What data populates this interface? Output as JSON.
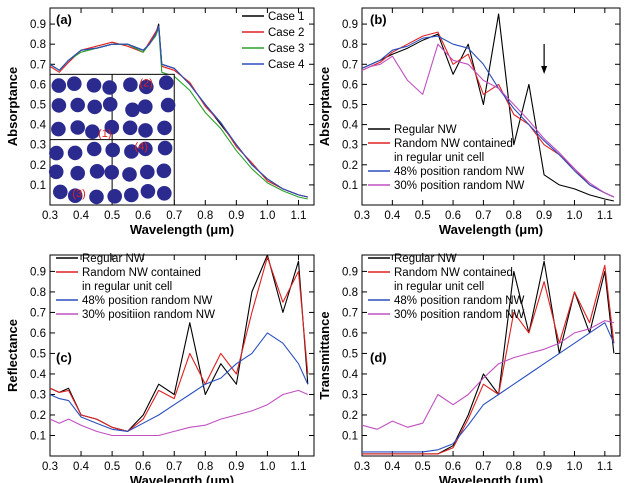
{
  "chart_data": [
    {
      "type": "line",
      "panel_label": "(a)",
      "xlabel": "Wavelength (μm)",
      "ylabel": "Absorptance",
      "xlim": [
        0.3,
        1.15
      ],
      "ylim": [
        0.0,
        0.98
      ],
      "x_ticks": [
        "0.3",
        "0.4",
        "0.5",
        "0.6",
        "0.7",
        "0.8",
        "0.9",
        "1.0",
        "1.1"
      ],
      "y_ticks": [
        "0.1",
        "0.2",
        "0.3",
        "0.4",
        "0.5",
        "0.6",
        "0.7",
        "0.8",
        "0.9"
      ],
      "legend_position": "top-right",
      "inset": {
        "labels": [
          "(1)",
          "(2)",
          "(3)",
          "(4)"
        ],
        "color": "#2b2b8f"
      },
      "series": [
        {
          "name": "Case 1",
          "color": "#000000",
          "x": [
            0.3,
            0.33,
            0.36,
            0.4,
            0.45,
            0.5,
            0.55,
            0.6,
            0.62,
            0.64,
            0.65,
            0.66,
            0.7,
            0.75,
            0.8,
            0.85,
            0.9,
            0.95,
            1.0,
            1.05,
            1.1,
            1.13
          ],
          "y": [
            0.7,
            0.67,
            0.72,
            0.77,
            0.78,
            0.8,
            0.8,
            0.77,
            0.8,
            0.85,
            0.9,
            0.7,
            0.68,
            0.6,
            0.5,
            0.4,
            0.3,
            0.2,
            0.13,
            0.08,
            0.05,
            0.04
          ]
        },
        {
          "name": "Case 2",
          "color": "#e02020",
          "x": [
            0.3,
            0.33,
            0.36,
            0.4,
            0.45,
            0.5,
            0.55,
            0.6,
            0.62,
            0.64,
            0.65,
            0.66,
            0.7,
            0.75,
            0.8,
            0.85,
            0.9,
            0.95,
            1.0,
            1.05,
            1.1,
            1.13
          ],
          "y": [
            0.69,
            0.66,
            0.71,
            0.77,
            0.79,
            0.81,
            0.79,
            0.76,
            0.81,
            0.86,
            0.89,
            0.69,
            0.67,
            0.61,
            0.49,
            0.41,
            0.29,
            0.21,
            0.12,
            0.08,
            0.05,
            0.04
          ]
        },
        {
          "name": "Case 3",
          "color": "#2aa02a",
          "x": [
            0.3,
            0.33,
            0.36,
            0.4,
            0.45,
            0.5,
            0.55,
            0.6,
            0.62,
            0.64,
            0.65,
            0.66,
            0.7,
            0.75,
            0.8,
            0.85,
            0.9,
            0.95,
            1.0,
            1.05,
            1.1,
            1.13
          ],
          "y": [
            0.7,
            0.67,
            0.72,
            0.76,
            0.78,
            0.8,
            0.8,
            0.76,
            0.8,
            0.84,
            0.88,
            0.66,
            0.64,
            0.57,
            0.46,
            0.38,
            0.27,
            0.18,
            0.11,
            0.07,
            0.04,
            0.03
          ]
        },
        {
          "name": "Case 4",
          "color": "#2a4fbf",
          "x": [
            0.3,
            0.33,
            0.36,
            0.4,
            0.45,
            0.5,
            0.55,
            0.6,
            0.62,
            0.64,
            0.65,
            0.66,
            0.7,
            0.75,
            0.8,
            0.85,
            0.9,
            0.95,
            1.0,
            1.05,
            1.1,
            1.13
          ],
          "y": [
            0.7,
            0.67,
            0.72,
            0.77,
            0.78,
            0.8,
            0.8,
            0.77,
            0.8,
            0.85,
            0.89,
            0.7,
            0.68,
            0.6,
            0.5,
            0.41,
            0.3,
            0.2,
            0.13,
            0.08,
            0.05,
            0.04
          ]
        }
      ]
    },
    {
      "type": "line",
      "panel_label": "(b)",
      "xlabel": "Wavelength (μm)",
      "ylabel": "Absorptance",
      "xlim": [
        0.3,
        1.15
      ],
      "ylim": [
        0.0,
        0.98
      ],
      "x_ticks": [
        "0.3",
        "0.4",
        "0.5",
        "0.6",
        "0.7",
        "0.8",
        "0.9",
        "1.0",
        "1.1"
      ],
      "y_ticks": [
        "0.1",
        "0.2",
        "0.3",
        "0.4",
        "0.5",
        "0.6",
        "0.7",
        "0.8",
        "0.9"
      ],
      "legend_position": "bottom-left",
      "annotation": "arrow at 0.9 μm",
      "series": [
        {
          "name": "Regular NW",
          "color": "#000000",
          "x": [
            0.3,
            0.33,
            0.36,
            0.4,
            0.45,
            0.5,
            0.55,
            0.6,
            0.65,
            0.7,
            0.75,
            0.8,
            0.85,
            0.9,
            0.95,
            1.0,
            1.05,
            1.1,
            1.13
          ],
          "y": [
            0.68,
            0.7,
            0.72,
            0.75,
            0.78,
            0.82,
            0.85,
            0.65,
            0.8,
            0.5,
            0.95,
            0.3,
            0.6,
            0.15,
            0.1,
            0.08,
            0.05,
            0.03,
            0.02
          ]
        },
        {
          "name": "Random NW contained in regular unit cell",
          "color": "#e02020",
          "x": [
            0.3,
            0.33,
            0.36,
            0.4,
            0.45,
            0.5,
            0.55,
            0.6,
            0.65,
            0.7,
            0.75,
            0.8,
            0.85,
            0.9,
            0.95,
            1.0,
            1.05,
            1.1,
            1.13
          ],
          "y": [
            0.67,
            0.69,
            0.71,
            0.76,
            0.8,
            0.84,
            0.86,
            0.7,
            0.75,
            0.55,
            0.6,
            0.45,
            0.4,
            0.3,
            0.25,
            0.18,
            0.1,
            0.06,
            0.04
          ]
        },
        {
          "name": "48% position random NW",
          "color": "#2a4fbf",
          "x": [
            0.3,
            0.33,
            0.36,
            0.4,
            0.45,
            0.5,
            0.55,
            0.6,
            0.65,
            0.7,
            0.75,
            0.8,
            0.85,
            0.9,
            0.95,
            1.0,
            1.05,
            1.1,
            1.13
          ],
          "y": [
            0.68,
            0.7,
            0.72,
            0.77,
            0.79,
            0.83,
            0.84,
            0.8,
            0.78,
            0.7,
            0.58,
            0.48,
            0.4,
            0.32,
            0.25,
            0.17,
            0.1,
            0.06,
            0.04
          ]
        },
        {
          "name": "30% position random NW",
          "color": "#c050c0",
          "x": [
            0.3,
            0.33,
            0.36,
            0.4,
            0.45,
            0.5,
            0.55,
            0.6,
            0.65,
            0.7,
            0.75,
            0.8,
            0.85,
            0.9,
            0.95,
            1.0,
            1.05,
            1.1,
            1.13
          ],
          "y": [
            0.67,
            0.69,
            0.7,
            0.74,
            0.62,
            0.55,
            0.8,
            0.72,
            0.7,
            0.62,
            0.58,
            0.5,
            0.42,
            0.33,
            0.26,
            0.18,
            0.11,
            0.06,
            0.04
          ]
        }
      ]
    },
    {
      "type": "line",
      "panel_label": "(c)",
      "xlabel": "Wavelength (μm)",
      "ylabel": "Reflectance",
      "xlim": [
        0.3,
        1.15
      ],
      "ylim": [
        0.0,
        0.98
      ],
      "x_ticks": [
        "0.3",
        "0.4",
        "0.5",
        "0.6",
        "0.7",
        "0.8",
        "0.9",
        "1.0",
        "1.1"
      ],
      "y_ticks": [
        "0.1",
        "0.2",
        "0.3",
        "0.4",
        "0.5",
        "0.6",
        "0.7",
        "0.8",
        "0.9"
      ],
      "legend_position": "top-left",
      "series": [
        {
          "name": "Regular NW",
          "color": "#000000",
          "x": [
            0.3,
            0.33,
            0.36,
            0.4,
            0.45,
            0.5,
            0.55,
            0.6,
            0.65,
            0.7,
            0.75,
            0.8,
            0.85,
            0.9,
            0.95,
            1.0,
            1.05,
            1.1,
            1.13
          ],
          "y": [
            0.33,
            0.31,
            0.33,
            0.2,
            0.18,
            0.14,
            0.12,
            0.2,
            0.35,
            0.3,
            0.65,
            0.3,
            0.45,
            0.35,
            0.8,
            0.98,
            0.7,
            0.95,
            0.35
          ]
        },
        {
          "name": "Random NW contained in regular unit cell",
          "color": "#e02020",
          "x": [
            0.3,
            0.33,
            0.36,
            0.4,
            0.45,
            0.5,
            0.55,
            0.6,
            0.65,
            0.7,
            0.75,
            0.8,
            0.85,
            0.9,
            0.95,
            1.0,
            1.05,
            1.1,
            1.13
          ],
          "y": [
            0.33,
            0.31,
            0.32,
            0.2,
            0.18,
            0.14,
            0.12,
            0.18,
            0.32,
            0.28,
            0.5,
            0.35,
            0.5,
            0.4,
            0.7,
            0.97,
            0.75,
            0.9,
            0.4
          ]
        },
        {
          "name": "48% position random NW",
          "color": "#2a4fbf",
          "x": [
            0.3,
            0.33,
            0.36,
            0.4,
            0.45,
            0.5,
            0.55,
            0.6,
            0.65,
            0.7,
            0.75,
            0.8,
            0.85,
            0.9,
            0.95,
            1.0,
            1.05,
            1.1,
            1.13
          ],
          "y": [
            0.3,
            0.28,
            0.27,
            0.19,
            0.16,
            0.13,
            0.12,
            0.16,
            0.2,
            0.25,
            0.3,
            0.35,
            0.38,
            0.45,
            0.5,
            0.6,
            0.55,
            0.45,
            0.35
          ]
        },
        {
          "name": "30% positiion random NW",
          "color": "#c050c0",
          "x": [
            0.3,
            0.33,
            0.36,
            0.4,
            0.45,
            0.5,
            0.55,
            0.6,
            0.65,
            0.7,
            0.75,
            0.8,
            0.85,
            0.9,
            0.95,
            1.0,
            1.05,
            1.1,
            1.13
          ],
          "y": [
            0.18,
            0.16,
            0.18,
            0.15,
            0.12,
            0.1,
            0.1,
            0.1,
            0.1,
            0.12,
            0.14,
            0.15,
            0.18,
            0.2,
            0.22,
            0.25,
            0.3,
            0.32,
            0.3
          ]
        }
      ]
    },
    {
      "type": "line",
      "panel_label": "(d)",
      "xlabel": "Wavelength (μm)",
      "ylabel": "Transmittance",
      "xlim": [
        0.3,
        1.15
      ],
      "ylim": [
        0.0,
        0.98
      ],
      "x_ticks": [
        "0.3",
        "0.4",
        "0.5",
        "0.6",
        "0.7",
        "0.8",
        "0.9",
        "1.0",
        "1.1"
      ],
      "y_ticks": [
        "0.1",
        "0.2",
        "0.3",
        "0.4",
        "0.5",
        "0.6",
        "0.7",
        "0.8",
        "0.9"
      ],
      "legend_position": "top-left",
      "series": [
        {
          "name": "Regular NW",
          "color": "#000000",
          "x": [
            0.3,
            0.35,
            0.4,
            0.45,
            0.5,
            0.55,
            0.6,
            0.65,
            0.7,
            0.75,
            0.8,
            0.85,
            0.9,
            0.95,
            1.0,
            1.05,
            1.1,
            1.13
          ],
          "y": [
            0.01,
            0.01,
            0.01,
            0.01,
            0.01,
            0.01,
            0.05,
            0.2,
            0.4,
            0.3,
            0.9,
            0.6,
            0.95,
            0.5,
            0.8,
            0.6,
            0.9,
            0.5
          ]
        },
        {
          "name": "Random NW contained in regular unit cell",
          "color": "#e02020",
          "x": [
            0.3,
            0.35,
            0.4,
            0.45,
            0.5,
            0.55,
            0.6,
            0.65,
            0.7,
            0.75,
            0.8,
            0.85,
            0.9,
            0.95,
            1.0,
            1.05,
            1.1,
            1.13
          ],
          "y": [
            0.01,
            0.01,
            0.01,
            0.01,
            0.01,
            0.01,
            0.04,
            0.18,
            0.35,
            0.3,
            0.7,
            0.6,
            0.85,
            0.55,
            0.8,
            0.65,
            0.93,
            0.55
          ]
        },
        {
          "name": "48% position random NW",
          "color": "#2a4fbf",
          "x": [
            0.3,
            0.35,
            0.4,
            0.45,
            0.5,
            0.55,
            0.6,
            0.65,
            0.7,
            0.75,
            0.8,
            0.85,
            0.9,
            0.95,
            1.0,
            1.05,
            1.1,
            1.13
          ],
          "y": [
            0.02,
            0.02,
            0.02,
            0.02,
            0.02,
            0.03,
            0.06,
            0.15,
            0.25,
            0.3,
            0.35,
            0.4,
            0.45,
            0.5,
            0.55,
            0.6,
            0.65,
            0.55
          ]
        },
        {
          "name": "30% position random NW",
          "color": "#c050c0",
          "x": [
            0.3,
            0.35,
            0.4,
            0.45,
            0.5,
            0.55,
            0.6,
            0.65,
            0.7,
            0.75,
            0.8,
            0.85,
            0.9,
            0.95,
            1.0,
            1.05,
            1.1,
            1.13
          ],
          "y": [
            0.15,
            0.13,
            0.17,
            0.14,
            0.16,
            0.3,
            0.25,
            0.3,
            0.38,
            0.45,
            0.48,
            0.5,
            0.52,
            0.55,
            0.6,
            0.62,
            0.66,
            0.65
          ]
        }
      ]
    }
  ]
}
